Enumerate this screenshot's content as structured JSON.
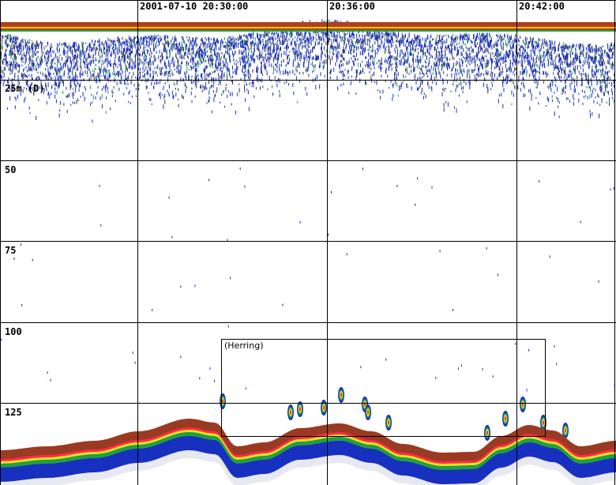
{
  "time_labels": [
    "2001-07-10 20:30:00",
    "20:36:00",
    "20:42:00"
  ],
  "depth_labels": [
    "25m (D)",
    "50",
    "75",
    "100",
    "125"
  ],
  "annotation": {
    "label": "(Herring)"
  },
  "colors": {
    "surface_band": "#b04020",
    "bottom_band": "#9a3a22",
    "echo_weak": "#1830c0",
    "echo_medium": "#20a040",
    "echo_strong": "#f0e020",
    "echo_high": "#ff2a4a",
    "grid": "#000000"
  }
}
